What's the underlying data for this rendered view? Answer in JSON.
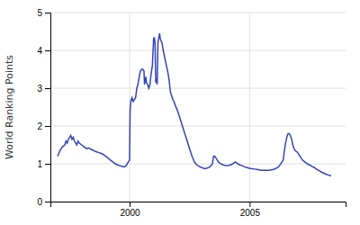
{
  "chart_data": {
    "type": "line",
    "ylabel": "World Ranking Points",
    "color": "#3344bb",
    "grid": true,
    "xlim": [
      1996.7,
      2009.0
    ],
    "xticks": [
      2000,
      2005
    ],
    "ylim": [
      0,
      5
    ],
    "yticks": [
      0,
      1,
      2,
      3,
      4,
      5
    ],
    "x": [
      1997.0,
      1997.1,
      1997.2,
      1997.3,
      1997.35,
      1997.4,
      1997.45,
      1997.5,
      1997.55,
      1997.6,
      1997.65,
      1997.7,
      1997.75,
      1997.8,
      1997.85,
      1997.9,
      1998.0,
      1998.1,
      1998.2,
      1998.3,
      1998.4,
      1998.5,
      1998.6,
      1998.7,
      1998.8,
      1998.9,
      1999.0,
      1999.1,
      1999.2,
      1999.3,
      1999.4,
      1999.5,
      1999.6,
      1999.7,
      1999.75,
      1999.8,
      1999.85,
      1999.9,
      1999.95,
      2000.0,
      2000.02,
      2000.05,
      2000.1,
      2000.15,
      2000.2,
      2000.25,
      2000.3,
      2000.35,
      2000.4,
      2000.45,
      2000.5,
      2000.55,
      2000.6,
      2000.62,
      2000.65,
      2000.68,
      2000.7,
      2000.75,
      2000.8,
      2000.85,
      2000.9,
      2000.95,
      2001.0,
      2001.03,
      2001.06,
      2001.09,
      2001.12,
      2001.15,
      2001.18,
      2001.22,
      2001.25,
      2001.28,
      2001.35,
      2001.4,
      2001.5,
      2001.6,
      2001.65,
      2001.7,
      2001.75,
      2001.8,
      2001.85,
      2001.9,
      2002.0,
      2002.1,
      2002.2,
      2002.3,
      2002.4,
      2002.5,
      2002.6,
      2002.7,
      2002.8,
      2002.9,
      2003.0,
      2003.1,
      2003.15,
      2003.2,
      2003.3,
      2003.4,
      2003.45,
      2003.5,
      2003.55,
      2003.6,
      2003.65,
      2003.7,
      2003.8,
      2003.9,
      2004.0,
      2004.1,
      2004.2,
      2004.3,
      2004.4,
      2004.45,
      2004.5,
      2004.6,
      2004.7,
      2004.8,
      2004.9,
      2005.0,
      2005.1,
      2005.2,
      2005.3,
      2005.4,
      2005.5,
      2005.6,
      2005.7,
      2005.8,
      2005.9,
      2006.0,
      2006.1,
      2006.2,
      2006.3,
      2006.4,
      2006.45,
      2006.5,
      2006.55,
      2006.6,
      2006.65,
      2006.7,
      2006.75,
      2006.8,
      2006.85,
      2006.9,
      2007.0,
      2007.1,
      2007.2,
      2007.3,
      2007.4,
      2007.5,
      2007.6,
      2007.7,
      2007.8,
      2007.9,
      2008.0,
      2008.1,
      2008.2,
      2008.3,
      2008.4
    ],
    "values": [
      1.2,
      1.35,
      1.45,
      1.5,
      1.6,
      1.55,
      1.65,
      1.7,
      1.75,
      1.65,
      1.7,
      1.6,
      1.55,
      1.5,
      1.6,
      1.55,
      1.5,
      1.45,
      1.4,
      1.42,
      1.38,
      1.35,
      1.32,
      1.3,
      1.28,
      1.25,
      1.2,
      1.15,
      1.1,
      1.05,
      1.0,
      0.97,
      0.95,
      0.93,
      0.92,
      0.93,
      0.95,
      1.0,
      1.05,
      1.1,
      2.4,
      2.65,
      2.75,
      2.65,
      2.7,
      2.75,
      3.0,
      3.1,
      3.3,
      3.45,
      3.5,
      3.5,
      3.45,
      3.1,
      3.2,
      3.3,
      3.15,
      3.1,
      3.0,
      3.1,
      3.4,
      3.6,
      4.3,
      4.35,
      4.2,
      3.15,
      3.2,
      3.1,
      4.2,
      4.35,
      4.45,
      4.3,
      4.2,
      4.0,
      3.7,
      3.4,
      3.2,
      2.9,
      2.8,
      2.7,
      2.65,
      2.55,
      2.4,
      2.2,
      2.0,
      1.8,
      1.6,
      1.4,
      1.2,
      1.05,
      0.97,
      0.93,
      0.9,
      0.88,
      0.87,
      0.88,
      0.9,
      0.95,
      1.0,
      1.2,
      1.2,
      1.15,
      1.1,
      1.05,
      1.0,
      0.97,
      0.95,
      0.95,
      0.97,
      1.0,
      1.05,
      1.03,
      1.0,
      0.97,
      0.95,
      0.92,
      0.9,
      0.88,
      0.87,
      0.86,
      0.85,
      0.84,
      0.83,
      0.83,
      0.83,
      0.83,
      0.84,
      0.85,
      0.88,
      0.92,
      1.0,
      1.1,
      1.35,
      1.55,
      1.7,
      1.8,
      1.8,
      1.75,
      1.65,
      1.5,
      1.4,
      1.35,
      1.3,
      1.2,
      1.1,
      1.05,
      1.0,
      0.97,
      0.93,
      0.9,
      0.85,
      0.82,
      0.78,
      0.75,
      0.72,
      0.7,
      0.68
    ]
  }
}
